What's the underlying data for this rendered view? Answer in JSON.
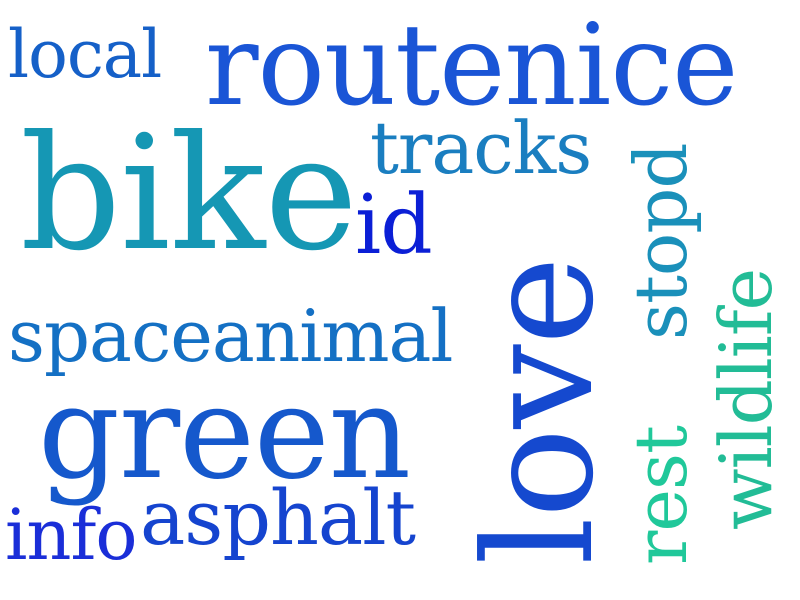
{
  "words": {
    "routenice": {
      "text": "routenice",
      "color": "#1a55d6"
    },
    "local": {
      "text": "local",
      "color": "#1560c8"
    },
    "tracks": {
      "text": "tracks",
      "color": "#1a7ec0"
    },
    "bike": {
      "text": "bike",
      "color": "#1597b4"
    },
    "id": {
      "text": "id",
      "color": "#0b1fd6"
    },
    "spaceanimal": {
      "text": "spaceanimal",
      "color": "#1470c4"
    },
    "green": {
      "text": "green",
      "color": "#1558cc"
    },
    "info": {
      "text": "info",
      "color": "#1a2ed8"
    },
    "asphalt": {
      "text": "asphalt",
      "color": "#1544cf"
    },
    "love": {
      "text": "love",
      "color": "#1549cf"
    },
    "stopd": {
      "text": "stopd",
      "color": "#1a90ba"
    },
    "rest": {
      "text": "rest",
      "color": "#20c89a"
    },
    "wildlife": {
      "text": "wildlife",
      "color": "#22bc96"
    }
  }
}
